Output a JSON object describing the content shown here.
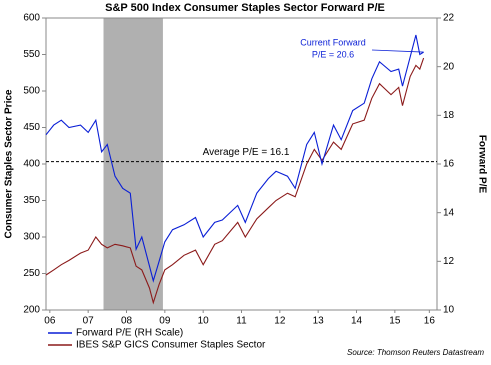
{
  "chart_data": {
    "type": "line",
    "title": "S&P 500 Index Consumer Staples Sector Forward P/E",
    "y_label": "Consumer Staples Sector Price",
    "y2_label": "Forward P/E",
    "source": "Source: Thomson Reuters Datastream",
    "x": [
      2006.4,
      2006.6,
      2006.8,
      2007.0,
      2007.3,
      2007.5,
      2007.7,
      2007.85,
      2008.0,
      2008.2,
      2008.4,
      2008.6,
      2008.75,
      2008.9,
      2009.1,
      2009.2,
      2009.35,
      2009.5,
      2009.7,
      2010.0,
      2010.3,
      2010.5,
      2010.8,
      2011.0,
      2011.4,
      2011.6,
      2011.9,
      2012.2,
      2012.4,
      2012.7,
      2012.9,
      2013.2,
      2013.4,
      2013.6,
      2013.9,
      2014.1,
      2014.4,
      2014.7,
      2014.9,
      2015.1,
      2015.4,
      2015.6,
      2015.7,
      2015.9,
      2016.05,
      2016.15,
      2016.25
    ],
    "series": [
      {
        "name": "Forward P/E (RH Scale)",
        "color": "#0a1fd6",
        "axis": "y2",
        "values": [
          17.2,
          17.6,
          17.8,
          17.5,
          17.6,
          17.3,
          17.8,
          16.5,
          16.8,
          15.5,
          15.0,
          14.8,
          12.5,
          13.0,
          11.8,
          11.2,
          12.0,
          12.8,
          13.3,
          13.5,
          13.8,
          13.0,
          13.6,
          13.7,
          14.3,
          13.6,
          14.8,
          15.4,
          15.7,
          15.5,
          15.0,
          16.8,
          17.3,
          16.0,
          17.6,
          17.0,
          18.2,
          18.5,
          19.5,
          20.2,
          19.8,
          19.9,
          19.2,
          20.4,
          21.3,
          20.5,
          20.6
        ]
      },
      {
        "name": "IBES S&P GICS Consumer Staples Sector",
        "color": "#8b1a1a",
        "values": [
          248,
          255,
          262,
          268,
          278,
          282,
          300,
          290,
          285,
          290,
          288,
          285,
          260,
          255,
          230,
          210,
          235,
          255,
          262,
          275,
          282,
          262,
          290,
          295,
          320,
          300,
          325,
          340,
          350,
          360,
          355,
          400,
          420,
          405,
          430,
          420,
          455,
          460,
          490,
          510,
          495,
          505,
          480,
          520,
          535,
          530,
          545
        ]
      }
    ],
    "shaded_range": [
      2007.9,
      2009.45
    ],
    "shade_color": "#b0b0b0",
    "average": 16.1,
    "annotations": [
      "Average P/E = 16.1",
      "Current Forward",
      "P/E = 20.6"
    ],
    "xlim": [
      2006.4,
      2016.6
    ],
    "xticks": [
      {
        "value": 2006.5,
        "label": "06"
      },
      {
        "value": 2007.5,
        "label": "07"
      },
      {
        "value": 2008.5,
        "label": "08"
      },
      {
        "value": 2009.5,
        "label": "09"
      },
      {
        "value": 2010.5,
        "label": "10"
      },
      {
        "value": 2011.5,
        "label": "11"
      },
      {
        "value": 2012.5,
        "label": "12"
      },
      {
        "value": 2013.5,
        "label": "13"
      },
      {
        "value": 2014.5,
        "label": "14"
      },
      {
        "value": 2015.5,
        "label": "15"
      },
      {
        "value": 2016.4,
        "label": "16"
      }
    ],
    "ylim": [
      200,
      600
    ],
    "yticks": [
      200,
      250,
      300,
      350,
      400,
      450,
      500,
      550,
      600
    ],
    "y2lim": [
      10,
      22
    ],
    "y2ticks": [
      10,
      12,
      14,
      16,
      18,
      20,
      22
    ]
  }
}
